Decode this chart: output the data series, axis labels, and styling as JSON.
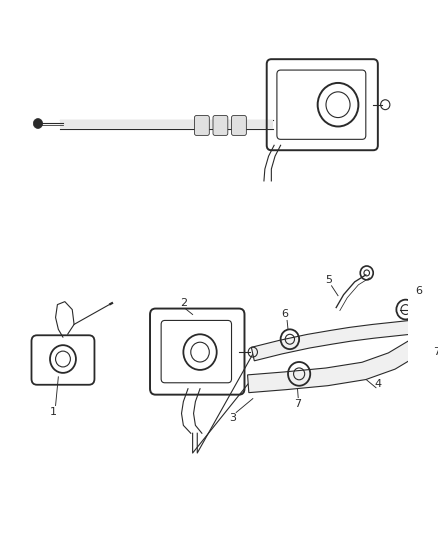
{
  "bg_color": "#ffffff",
  "line_color": "#2a2a2a",
  "label_color": "#2a2a2a",
  "figsize": [
    4.38,
    5.33
  ],
  "dpi": 100
}
